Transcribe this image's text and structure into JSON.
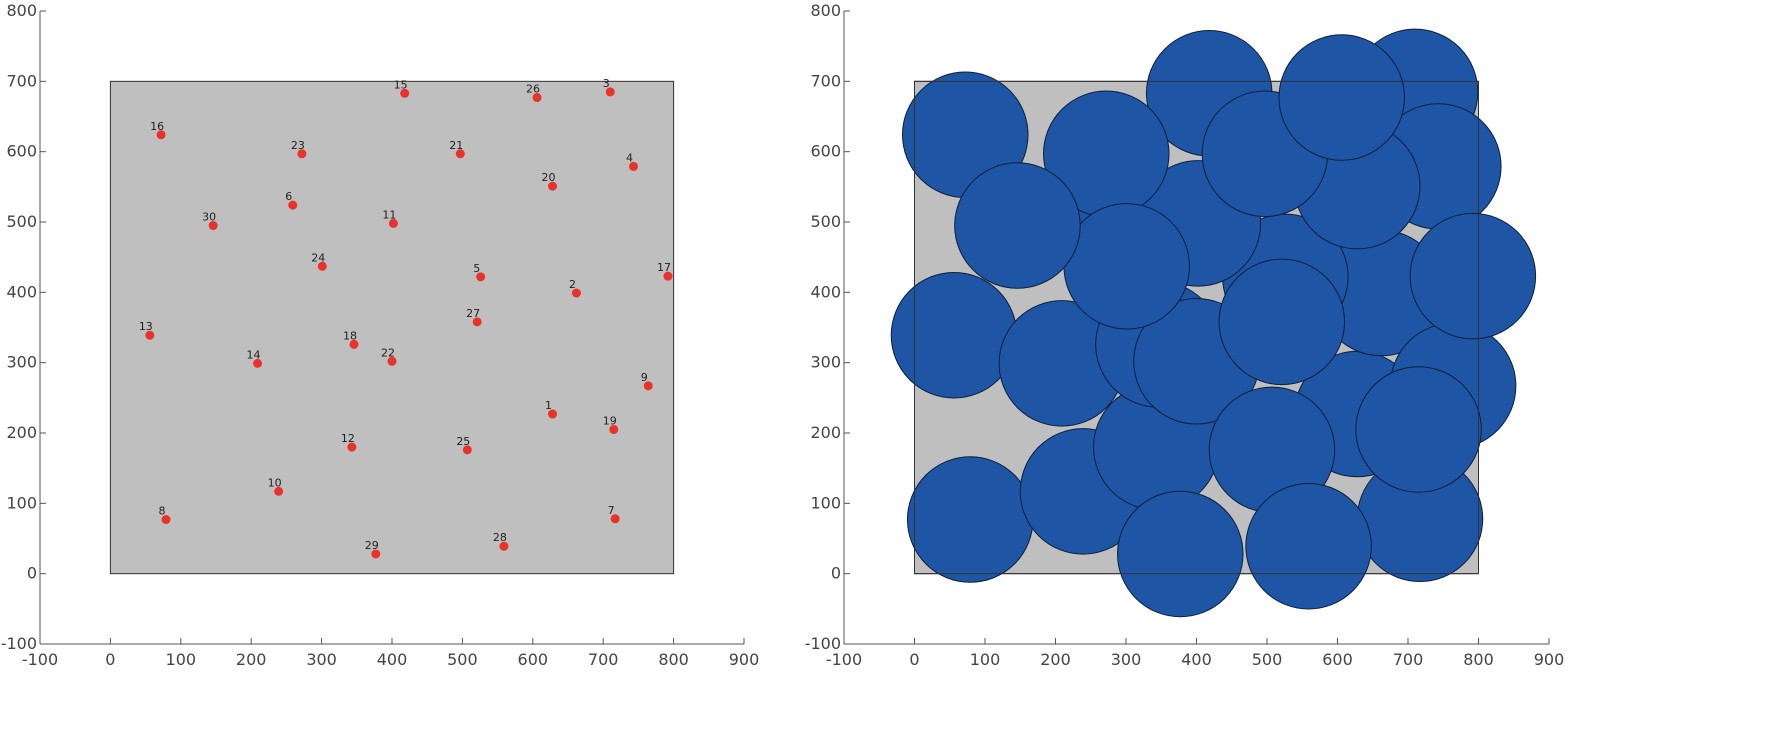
{
  "colors": {
    "region_fill": "#bfbfbf",
    "point": "#e8322a",
    "circle_fill": "#1f55a5",
    "axis": "#555555",
    "label": "#444444"
  },
  "chart_data": [
    {
      "type": "scatter",
      "title": "",
      "xlabel": "",
      "ylabel": "",
      "xlim": [
        -100,
        900
      ],
      "ylim": [
        -100,
        800
      ],
      "xticks": [
        -100,
        0,
        100,
        200,
        300,
        400,
        500,
        600,
        700,
        800,
        900
      ],
      "yticks": [
        -100,
        0,
        100,
        200,
        300,
        400,
        500,
        600,
        700,
        800
      ],
      "grid": false,
      "region": {
        "x": [
          0,
          800
        ],
        "y": [
          0,
          700
        ]
      },
      "points": [
        {
          "id": "1",
          "x": 628,
          "y": 227
        },
        {
          "id": "2",
          "x": 662,
          "y": 399
        },
        {
          "id": "3",
          "x": 710,
          "y": 685
        },
        {
          "id": "4",
          "x": 743,
          "y": 579
        },
        {
          "id": "5",
          "x": 526,
          "y": 422
        },
        {
          "id": "6",
          "x": 259,
          "y": 524
        },
        {
          "id": "7",
          "x": 717,
          "y": 78
        },
        {
          "id": "8",
          "x": 79,
          "y": 77
        },
        {
          "id": "9",
          "x": 764,
          "y": 267
        },
        {
          "id": "10",
          "x": 239,
          "y": 117
        },
        {
          "id": "11",
          "x": 402,
          "y": 498
        },
        {
          "id": "12",
          "x": 343,
          "y": 180
        },
        {
          "id": "13",
          "x": 56,
          "y": 339
        },
        {
          "id": "14",
          "x": 209,
          "y": 299
        },
        {
          "id": "15",
          "x": 418,
          "y": 683
        },
        {
          "id": "16",
          "x": 72,
          "y": 624
        },
        {
          "id": "17",
          "x": 792,
          "y": 423
        },
        {
          "id": "18",
          "x": 346,
          "y": 326
        },
        {
          "id": "19",
          "x": 715,
          "y": 205
        },
        {
          "id": "20",
          "x": 628,
          "y": 551
        },
        {
          "id": "21",
          "x": 497,
          "y": 597
        },
        {
          "id": "22",
          "x": 400,
          "y": 302
        },
        {
          "id": "23",
          "x": 272,
          "y": 597
        },
        {
          "id": "24",
          "x": 301,
          "y": 437
        },
        {
          "id": "25",
          "x": 507,
          "y": 176
        },
        {
          "id": "26",
          "x": 606,
          "y": 677
        },
        {
          "id": "27",
          "x": 521,
          "y": 358
        },
        {
          "id": "28",
          "x": 559,
          "y": 39
        },
        {
          "id": "29",
          "x": 377,
          "y": 28
        },
        {
          "id": "30",
          "x": 146,
          "y": 495
        }
      ]
    },
    {
      "type": "scatter",
      "title": "",
      "xlabel": "",
      "ylabel": "",
      "xlim": [
        -100,
        900
      ],
      "ylim": [
        -100,
        800
      ],
      "xticks": [
        -100,
        0,
        100,
        200,
        300,
        400,
        500,
        600,
        700,
        800,
        900
      ],
      "yticks": [
        -100,
        0,
        100,
        200,
        300,
        400,
        500,
        600,
        700,
        800
      ],
      "grid": false,
      "region": {
        "x": [
          0,
          800
        ],
        "y": [
          0,
          700
        ]
      },
      "radius": 89,
      "circles": [
        {
          "id": "1",
          "x": 628,
          "y": 227
        },
        {
          "id": "2",
          "x": 662,
          "y": 399
        },
        {
          "id": "3",
          "x": 710,
          "y": 685
        },
        {
          "id": "4",
          "x": 743,
          "y": 579
        },
        {
          "id": "5",
          "x": 526,
          "y": 422
        },
        {
          "id": "6",
          "x": 259,
          "y": 524
        },
        {
          "id": "7",
          "x": 717,
          "y": 78
        },
        {
          "id": "8",
          "x": 79,
          "y": 77
        },
        {
          "id": "9",
          "x": 764,
          "y": 267
        },
        {
          "id": "10",
          "x": 239,
          "y": 117
        },
        {
          "id": "11",
          "x": 402,
          "y": 498
        },
        {
          "id": "12",
          "x": 343,
          "y": 180
        },
        {
          "id": "13",
          "x": 56,
          "y": 339
        },
        {
          "id": "14",
          "x": 209,
          "y": 299
        },
        {
          "id": "15",
          "x": 418,
          "y": 683
        },
        {
          "id": "16",
          "x": 72,
          "y": 624
        },
        {
          "id": "17",
          "x": 792,
          "y": 423
        },
        {
          "id": "18",
          "x": 346,
          "y": 326
        },
        {
          "id": "19",
          "x": 715,
          "y": 205
        },
        {
          "id": "20",
          "x": 628,
          "y": 551
        },
        {
          "id": "21",
          "x": 497,
          "y": 597
        },
        {
          "id": "22",
          "x": 400,
          "y": 302
        },
        {
          "id": "23",
          "x": 272,
          "y": 597
        },
        {
          "id": "24",
          "x": 301,
          "y": 437
        },
        {
          "id": "25",
          "x": 507,
          "y": 176
        },
        {
          "id": "26",
          "x": 606,
          "y": 677
        },
        {
          "id": "27",
          "x": 521,
          "y": 358
        },
        {
          "id": "28",
          "x": 559,
          "y": 39
        },
        {
          "id": "29",
          "x": 377,
          "y": 28
        },
        {
          "id": "30",
          "x": 146,
          "y": 495
        }
      ]
    }
  ]
}
